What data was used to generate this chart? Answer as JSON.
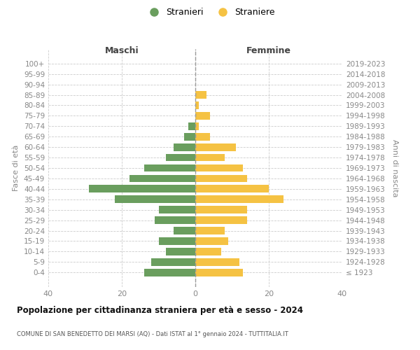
{
  "age_groups": [
    "100+",
    "95-99",
    "90-94",
    "85-89",
    "80-84",
    "75-79",
    "70-74",
    "65-69",
    "60-64",
    "55-59",
    "50-54",
    "45-49",
    "40-44",
    "35-39",
    "30-34",
    "25-29",
    "20-24",
    "15-19",
    "10-14",
    "5-9",
    "0-4"
  ],
  "birth_years": [
    "≤ 1923",
    "1924-1928",
    "1929-1933",
    "1934-1938",
    "1939-1943",
    "1944-1948",
    "1949-1953",
    "1954-1958",
    "1959-1963",
    "1964-1968",
    "1969-1973",
    "1974-1978",
    "1979-1983",
    "1984-1988",
    "1989-1993",
    "1994-1998",
    "1999-2003",
    "2004-2008",
    "2009-2013",
    "2014-2018",
    "2019-2023"
  ],
  "males": [
    0,
    0,
    0,
    0,
    0,
    0,
    2,
    3,
    6,
    8,
    14,
    18,
    29,
    22,
    10,
    11,
    6,
    10,
    8,
    12,
    14
  ],
  "females": [
    0,
    0,
    0,
    3,
    1,
    4,
    1,
    4,
    11,
    8,
    13,
    14,
    20,
    24,
    14,
    14,
    8,
    9,
    7,
    12,
    13
  ],
  "male_color": "#6a9e5e",
  "female_color": "#f5c243",
  "title": "Popolazione per cittadinanza straniera per età e sesso - 2024",
  "subtitle": "COMUNE DI SAN BENEDETTO DEI MARSI (AQ) - Dati ISTAT al 1° gennaio 2024 - TUTTITALIA.IT",
  "xlabel_left": "Maschi",
  "xlabel_right": "Femmine",
  "ylabel_left": "Fasce di età",
  "ylabel_right": "Anni di nascita",
  "xlim": 40,
  "legend_stranieri": "Stranieri",
  "legend_straniere": "Straniere",
  "bg_color": "#ffffff",
  "grid_color": "#cccccc"
}
